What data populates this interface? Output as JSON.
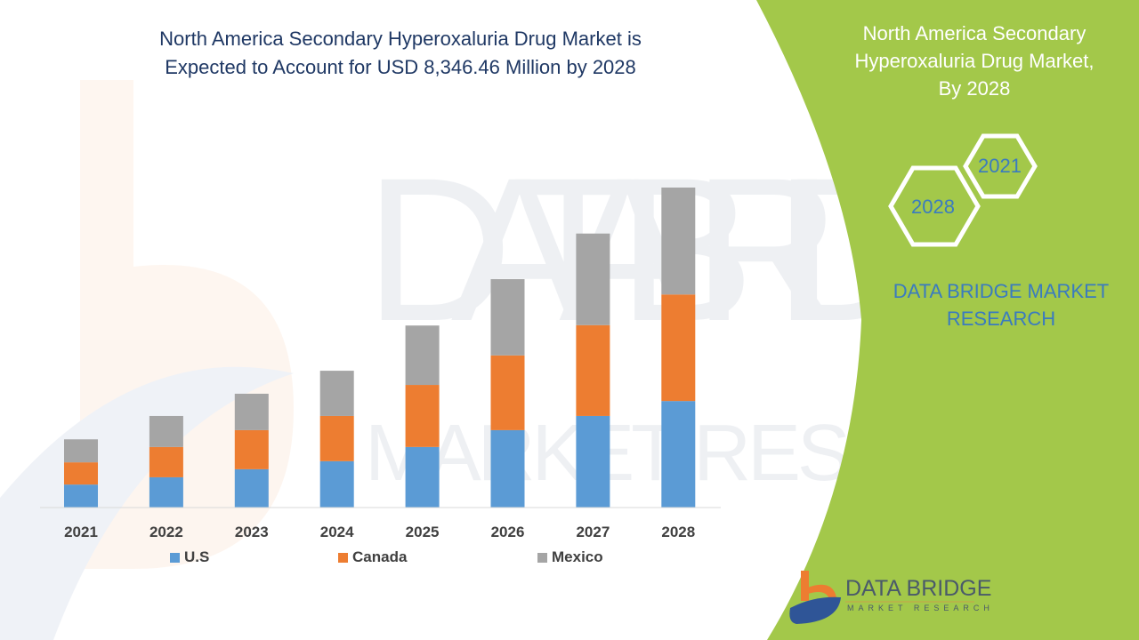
{
  "title": "North America  Secondary Hyperoxaluria Drug Market is Expected to Account for USD 8,346.46 Million by 2028",
  "title_lines": [
    "North America  Secondary Hyperoxaluria Drug Market is",
    "Expected to Account for USD 8,346.46 Million by 2028"
  ],
  "side_panel": {
    "title_lines": [
      "North America  Secondary",
      "Hyperoxaluria Drug Market,",
      "By 2028"
    ],
    "hex_years": [
      "2021",
      "2028"
    ],
    "brand_lines": [
      "DATA BRIDGE MARKET",
      "RESEARCH"
    ],
    "background_color": "#a3c84a"
  },
  "logo": {
    "name": "DATA BRIDGE",
    "tagline": "MARKET RESEARCH"
  },
  "chart_data": {
    "type": "bar",
    "stacked": true,
    "title": "North America  Secondary Hyperoxaluria Drug Market is Expected to Account for USD 8,346.46 Million by 2028",
    "categories": [
      "2021",
      "2022",
      "2023",
      "2024",
      "2025",
      "2026",
      "2027",
      "2028"
    ],
    "series": [
      {
        "name": "U.S",
        "color": "#5b9bd5",
        "values": [
          600,
          790,
          1000,
          1210,
          1580,
          2020,
          2390,
          2780
        ]
      },
      {
        "name": "Canada",
        "color": "#ed7d31",
        "values": [
          580,
          790,
          1020,
          1180,
          1620,
          1950,
          2370,
          2780
        ]
      },
      {
        "name": "Mexico",
        "color": "#a5a5a5",
        "values": [
          600,
          810,
          950,
          1180,
          1550,
          1990,
          2390,
          2790
        ]
      }
    ],
    "xlabel": "",
    "ylabel": "",
    "ylim": [
      0,
      8350
    ],
    "y_axis_shown": false,
    "grid": false,
    "legend": "bottom"
  }
}
